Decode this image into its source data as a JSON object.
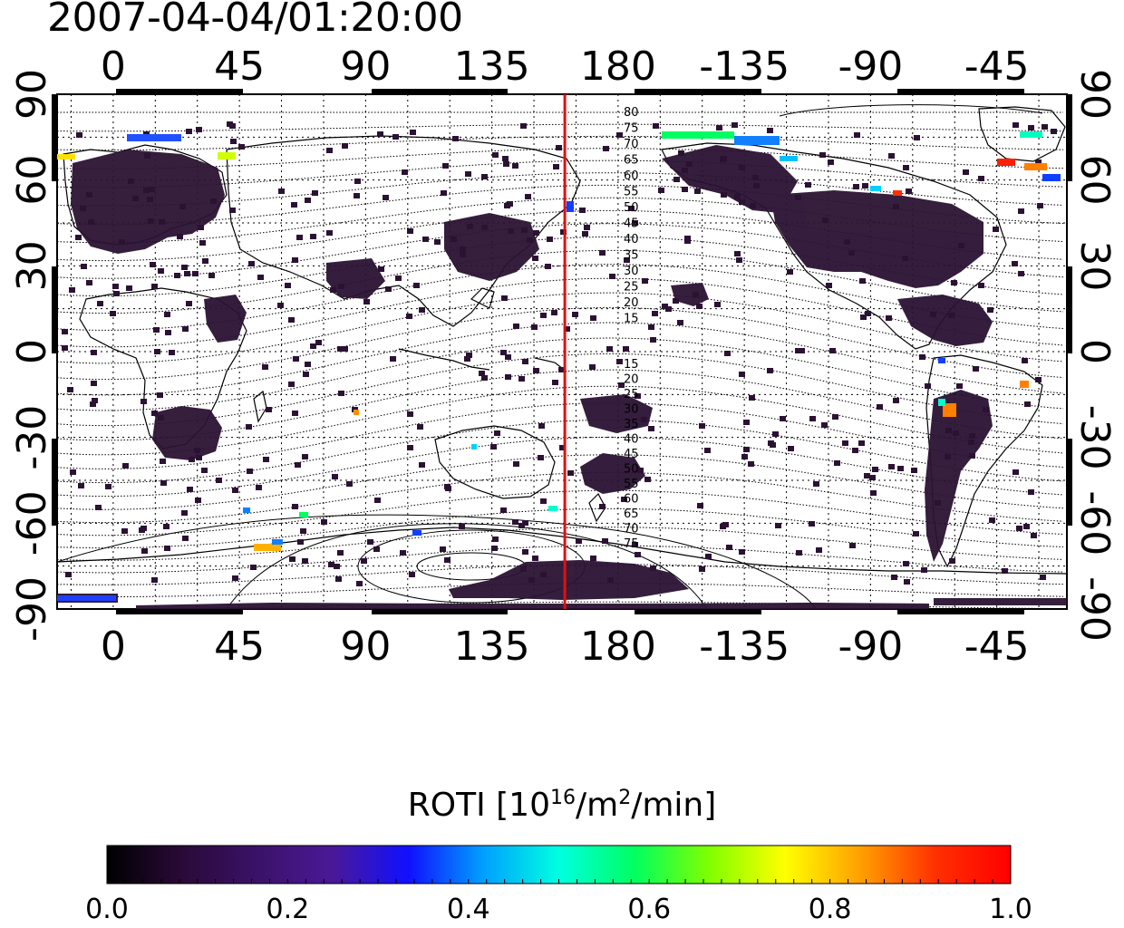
{
  "title": "2007-04-04/01:20:00",
  "map": {
    "top_lon_labels": [
      "0",
      "45",
      "90",
      "135",
      "180",
      "-135",
      "-90",
      "-45"
    ],
    "bottom_lon_labels": [
      "0",
      "45",
      "90",
      "135",
      "180",
      "-135",
      "-90",
      "-45"
    ],
    "left_lat_labels": [
      "90",
      "60",
      "30",
      "0",
      "-30",
      "-60",
      "-90"
    ],
    "right_lat_labels": [
      "90",
      "60",
      "30",
      "0",
      "-30",
      "-60",
      "-90"
    ],
    "lon_range": [
      -20,
      340
    ],
    "lat_range": [
      -90,
      90
    ],
    "terminator_color": "#dd1111",
    "terminator_lon": 161,
    "contour_labels_north": [
      "80",
      "75",
      "70",
      "65",
      "60",
      "55",
      "50",
      "45",
      "40",
      "35",
      "30",
      "25",
      "20",
      "15"
    ],
    "contour_labels_south": [
      "15",
      "20",
      "25",
      "30",
      "35",
      "40",
      "45",
      "50",
      "55",
      "60",
      "65",
      "70",
      "75"
    ]
  },
  "colorbar": {
    "label_prefix": "ROTI  [10",
    "label_sup1": "16",
    "label_mid": "/m",
    "label_sup2": "2",
    "label_suffix": "/min]",
    "min": 0.0,
    "max": 1.0,
    "ticks": [
      "0.0",
      "0.2",
      "0.4",
      "0.6",
      "0.8",
      "1.0"
    ],
    "colors": [
      "#000000",
      "#2a0a38",
      "#3a1268",
      "#4a1898",
      "#1010ff",
      "#00a0ff",
      "#00ffe0",
      "#00ff60",
      "#80ff00",
      "#ffff00",
      "#ffa000",
      "#ff3000",
      "#ff0000"
    ]
  }
}
